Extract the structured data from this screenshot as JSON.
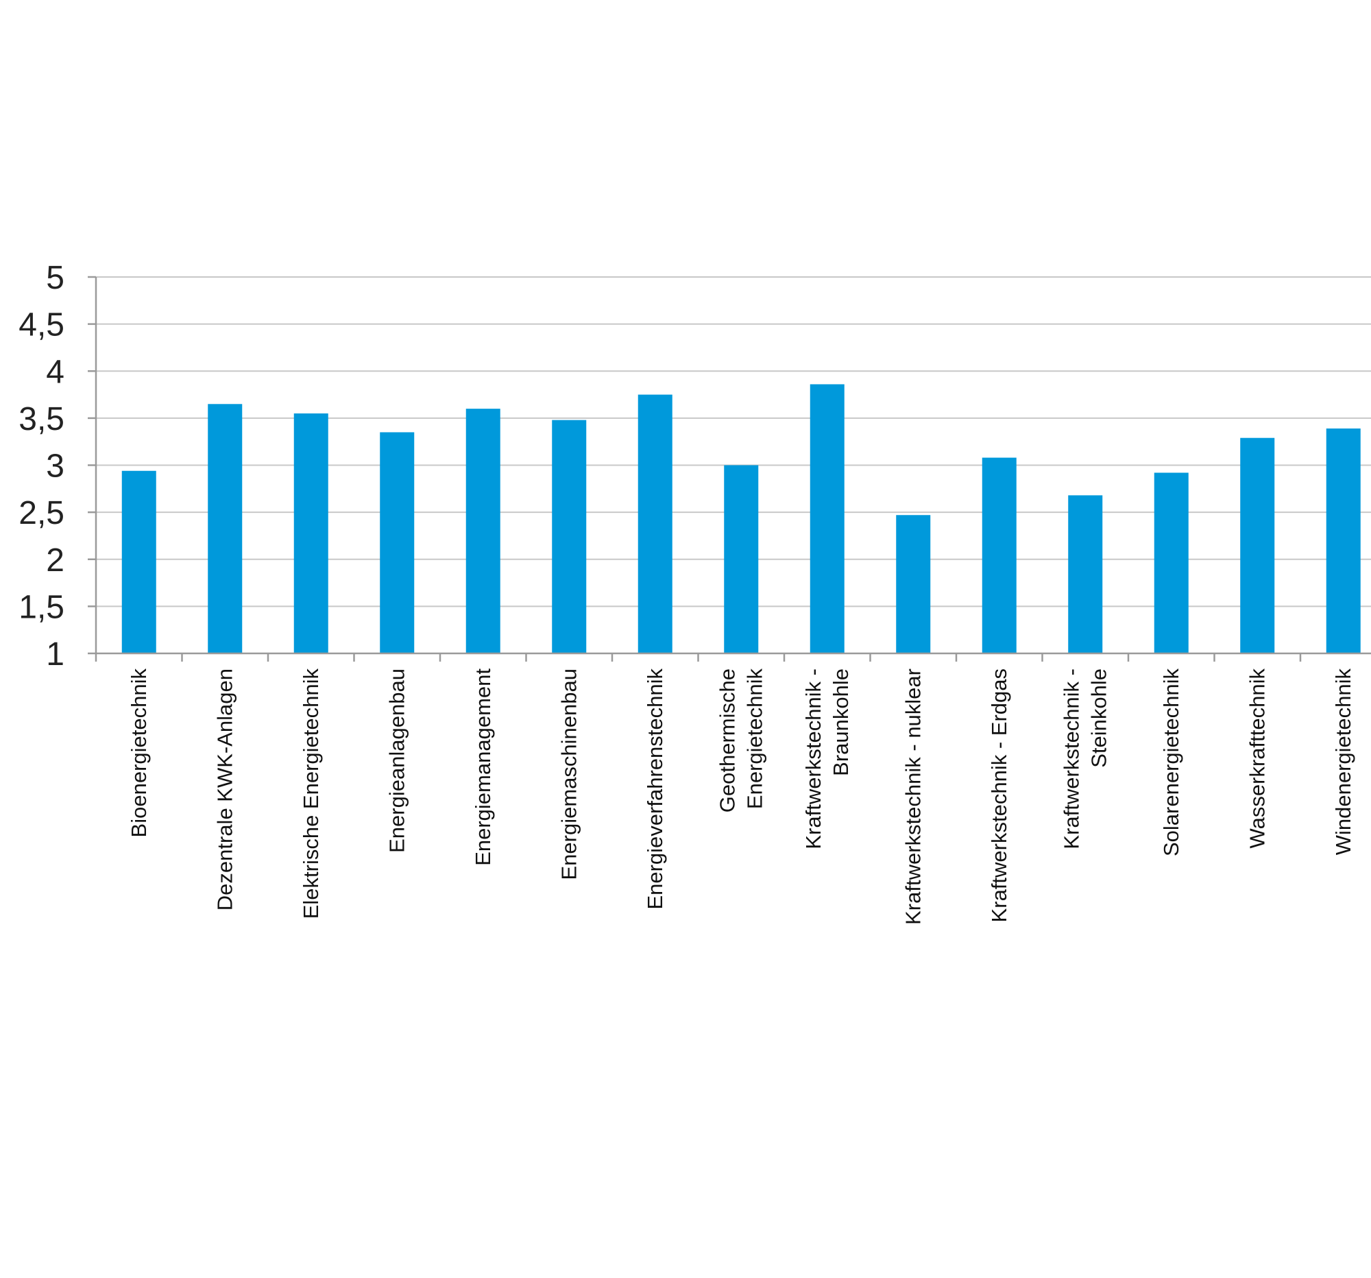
{
  "chart_data": {
    "type": "bar",
    "categories": [
      [
        "Bioenergietechnik"
      ],
      [
        "Dezentrale KWK-Anlagen"
      ],
      [
        "Elektrische Energietechnik"
      ],
      [
        "Energieanlagenbau"
      ],
      [
        "Energiemanagement"
      ],
      [
        "Energiemaschinenbau"
      ],
      [
        "Energieverfahrenstechnik"
      ],
      [
        "Geothermische",
        "Energietechnik"
      ],
      [
        "Kraftwerkstechnik -",
        "Braunkohle"
      ],
      [
        "Kraftwerkstechnik - nuklear"
      ],
      [
        "Kraftwerkstechnik - Erdgas"
      ],
      [
        "Kraftwerkstechnik -",
        "Steinkohle"
      ],
      [
        "Solarenergietechnik"
      ],
      [
        "Wasserkrafttechnik"
      ],
      [
        "Windenergietechnik"
      ]
    ],
    "values": [
      2.94,
      3.65,
      3.55,
      3.35,
      3.6,
      3.48,
      3.75,
      3.0,
      3.86,
      2.47,
      3.08,
      2.68,
      2.92,
      3.29,
      3.39
    ],
    "ylim": [
      1,
      5
    ],
    "yticks": [
      "1",
      "1,5",
      "2",
      "2,5",
      "3",
      "3,5",
      "4",
      "4,5",
      "5"
    ],
    "ytick_values": [
      1,
      1.5,
      2,
      2.5,
      3,
      3.5,
      4,
      4.5,
      5
    ],
    "grid": true,
    "legend": "none",
    "title": "",
    "xlabel": "",
    "ylabel": "",
    "colors": {
      "bar": "#0099db",
      "grid": "#c8c8c8",
      "axis": "#9a9a9a"
    }
  }
}
